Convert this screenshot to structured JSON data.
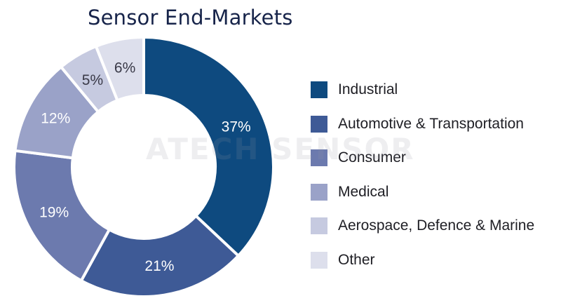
{
  "chart_data": {
    "type": "pie",
    "title": "Sensor End-Markets",
    "categories": [
      "Industrial",
      "Automotive & Transportation",
      "Consumer",
      "Medical",
      "Aerospace, Defence & Marine",
      "Other"
    ],
    "values": [
      37,
      21,
      19,
      12,
      5,
      6
    ],
    "data_labels": [
      "37%",
      "21%",
      "19%",
      "12%",
      "5%",
      "6%"
    ],
    "colors": [
      "#0e4a7f",
      "#3e5a96",
      "#6c7aae",
      "#9aa2c8",
      "#c6cae0",
      "#dddfec"
    ],
    "label_colors": [
      "#ffffff",
      "#ffffff",
      "#ffffff",
      "#ffffff",
      "#3a3a48",
      "#3a3a48"
    ],
    "donut": true,
    "legend_position": "right"
  },
  "watermark": "ATECH SENSOR"
}
